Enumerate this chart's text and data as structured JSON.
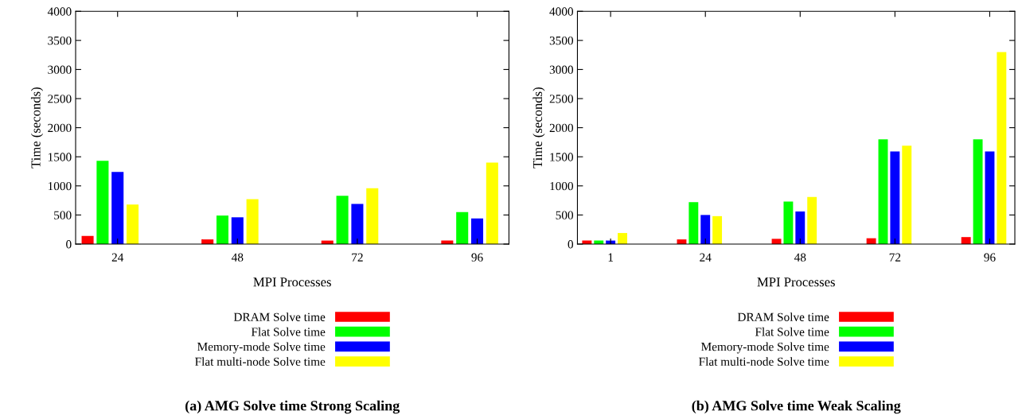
{
  "chart_data": [
    {
      "type": "bar",
      "title": "(a) AMG Solve time Strong Scaling",
      "xlabel": "MPI Processes",
      "ylabel": "Time (seconds)",
      "categories": [
        "24",
        "48",
        "72",
        "96"
      ],
      "ylim": [
        0,
        4000
      ],
      "yticks": [
        0,
        500,
        1000,
        1500,
        2000,
        2500,
        3000,
        3500,
        4000
      ],
      "grid": false,
      "legend": "bottom",
      "series": [
        {
          "name": "DRAM Solve time",
          "color": "#ff0000",
          "values": [
            140,
            80,
            60,
            60
          ]
        },
        {
          "name": "Flat Solve time",
          "color": "#00ff00",
          "values": [
            1430,
            490,
            830,
            550
          ]
        },
        {
          "name": "Memory-mode Solve time",
          "color": "#0000ff",
          "values": [
            1240,
            460,
            690,
            440
          ]
        },
        {
          "name": "Flat multi-node Solve time",
          "color": "#ffff00",
          "values": [
            680,
            770,
            960,
            1400
          ]
        }
      ]
    },
    {
      "type": "bar",
      "title": "(b) AMG Solve time Weak Scaling",
      "xlabel": "MPI Processes",
      "ylabel": "Time (seconds)",
      "categories": [
        "1",
        "24",
        "48",
        "72",
        "96"
      ],
      "ylim": [
        0,
        4000
      ],
      "yticks": [
        0,
        500,
        1000,
        1500,
        2000,
        2500,
        3000,
        3500,
        4000
      ],
      "grid": false,
      "legend": "bottom",
      "series": [
        {
          "name": "DRAM Solve time",
          "color": "#ff0000",
          "values": [
            60,
            80,
            90,
            100,
            120
          ]
        },
        {
          "name": "Flat Solve time",
          "color": "#00ff00",
          "values": [
            60,
            720,
            730,
            1800,
            1800
          ]
        },
        {
          "name": "Memory-mode Solve time",
          "color": "#0000ff",
          "values": [
            60,
            500,
            560,
            1590,
            1590
          ]
        },
        {
          "name": "Flat multi-node Solve time",
          "color": "#ffff00",
          "values": [
            190,
            480,
            810,
            1690,
            3300
          ]
        }
      ]
    }
  ]
}
